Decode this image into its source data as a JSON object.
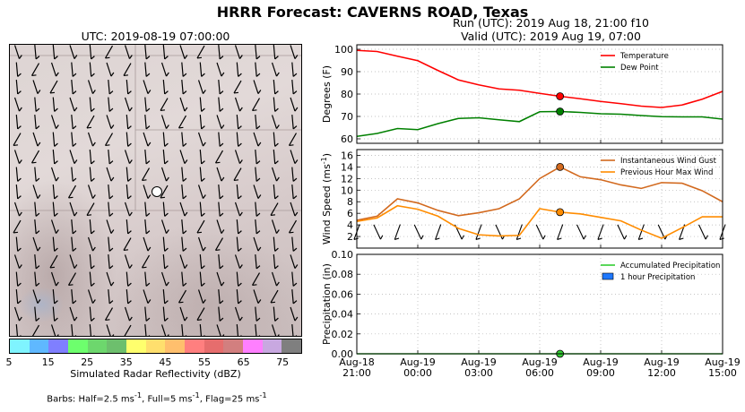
{
  "header": {
    "title": "HRRR Forecast: CAVERNS ROAD, Texas",
    "map_valid": "UTC: 2019-08-19 07:00:00",
    "run_line": "Run (UTC): 2019 Aug 18, 21:00 f10",
    "valid_line": "Valid (UTC): 2019 Aug 19, 07:00"
  },
  "map": {
    "colorbar_label": "Simulated Radar Reflectivity (dBZ)",
    "colorbar_colors": [
      "#7ff4ff",
      "#5fb8ff",
      "#7f7fff",
      "#6dff6d",
      "#6dd76d",
      "#6dbf6d",
      "#ffff6d",
      "#ffdf6d",
      "#ffbf6d",
      "#ff7f7f",
      "#e66d6d",
      "#d27f7f",
      "#ff7fff",
      "#c8a8e0",
      "#7f7f7f"
    ],
    "colorbar_ticks": [
      "5",
      "15",
      "25",
      "35",
      "45",
      "55",
      "65",
      "75"
    ],
    "barb_legend_prefix": "Barbs: Half=2.5 ms",
    "barb_legend_full": ", Full=5 ms",
    "barb_legend_flag": ", Flag=25 ms",
    "barb_legend_exp": "-1"
  },
  "chart_data": [
    {
      "type": "line",
      "ylabel": "Degrees (F)",
      "ylim": [
        58,
        102
      ],
      "yticks": [
        60,
        70,
        80,
        90,
        100
      ],
      "x": [
        0,
        1,
        2,
        3,
        4,
        5,
        6,
        7,
        8,
        9,
        10,
        11,
        12,
        13,
        14,
        15,
        16,
        17,
        18
      ],
      "series": [
        {
          "name": "Temperature",
          "color": "#ff0000",
          "values": [
            99.5,
            99,
            96.9,
            94.9,
            90.5,
            86.3,
            84.1,
            82.3,
            81.7,
            80.3,
            79,
            77.9,
            76.7,
            75.7,
            74.6,
            74,
            75.1,
            77.7,
            81.2
          ]
        },
        {
          "name": "Dew Point",
          "color": "#008000",
          "values": [
            61.1,
            62.4,
            64.6,
            64.1,
            66.8,
            69.1,
            69.4,
            68.5,
            67.7,
            72.1,
            72.2,
            71.8,
            71.2,
            71,
            70.4,
            69.9,
            69.8,
            69.8,
            68.8
          ]
        }
      ],
      "marker_x": 10,
      "legend": "top-right",
      "grid": true
    },
    {
      "type": "line",
      "ylabel": "Wind Speed (ms",
      "ylabel_exp": "-1",
      "ylabel_close": ")",
      "ylim": [
        0,
        17
      ],
      "yticks": [
        2,
        4,
        6,
        8,
        10,
        12,
        14,
        16
      ],
      "x": [
        0,
        1,
        2,
        3,
        4,
        5,
        6,
        7,
        8,
        9,
        10,
        11,
        12,
        13,
        14,
        15,
        16,
        17,
        18
      ],
      "series": [
        {
          "name": "Instantaneous Wind Gust",
          "color": "#d2691e",
          "values": [
            4.8,
            5.5,
            8.5,
            7.8,
            6.5,
            5.6,
            6.1,
            6.8,
            8.5,
            12,
            14,
            12.3,
            11.8,
            10.9,
            10.3,
            11.3,
            11.2,
            9.9,
            8
          ]
        },
        {
          "name": "Previous Hour Max Wind",
          "color": "#ff8c00",
          "values": [
            4.6,
            5.2,
            7.3,
            6.7,
            5.5,
            3.4,
            2.3,
            2.1,
            2.2,
            6.8,
            6.2,
            5.9,
            5.3,
            4.7,
            3.1,
            1.7,
            3.5,
            5.4,
            5.4
          ]
        }
      ],
      "marker_x": 10,
      "legend": "top-right",
      "grid": true
    },
    {
      "type": "line",
      "ylabel": "Precipitation (in)",
      "ylim": [
        0,
        0.1
      ],
      "yticks": [
        0.0,
        0.02,
        0.04,
        0.06,
        0.08,
        0.1
      ],
      "ytick_labels": [
        "0.00",
        "0.02",
        "0.04",
        "0.06",
        "0.08",
        "0.10"
      ],
      "x": [
        0,
        1,
        2,
        3,
        4,
        5,
        6,
        7,
        8,
        9,
        10,
        11,
        12,
        13,
        14,
        15,
        16,
        17,
        18
      ],
      "series": [
        {
          "name": "Accumulated Precipitation",
          "color": "#32cd32",
          "values": [
            0,
            0,
            0,
            0,
            0,
            0,
            0,
            0,
            0,
            0,
            0,
            0,
            0,
            0,
            0,
            0,
            0,
            0,
            0
          ]
        },
        {
          "name": "1 hour Precipitation",
          "color": "#1e78ff",
          "kind": "bar",
          "values": [
            0,
            0,
            0,
            0,
            0,
            0,
            0,
            0,
            0,
            0,
            0,
            0,
            0,
            0,
            0,
            0,
            0,
            0,
            0
          ]
        }
      ],
      "marker_x": 10,
      "xticks": [
        0,
        3,
        6,
        9,
        12,
        15,
        18
      ],
      "xtick_labels": [
        [
          "Aug-18",
          "21:00"
        ],
        [
          "Aug-19",
          "00:00"
        ],
        [
          "Aug-19",
          "03:00"
        ],
        [
          "Aug-19",
          "06:00"
        ],
        [
          "Aug-19",
          "09:00"
        ],
        [
          "Aug-19",
          "12:00"
        ],
        [
          "Aug-19",
          "15:00"
        ]
      ],
      "legend": "top-right",
      "grid": true
    }
  ]
}
